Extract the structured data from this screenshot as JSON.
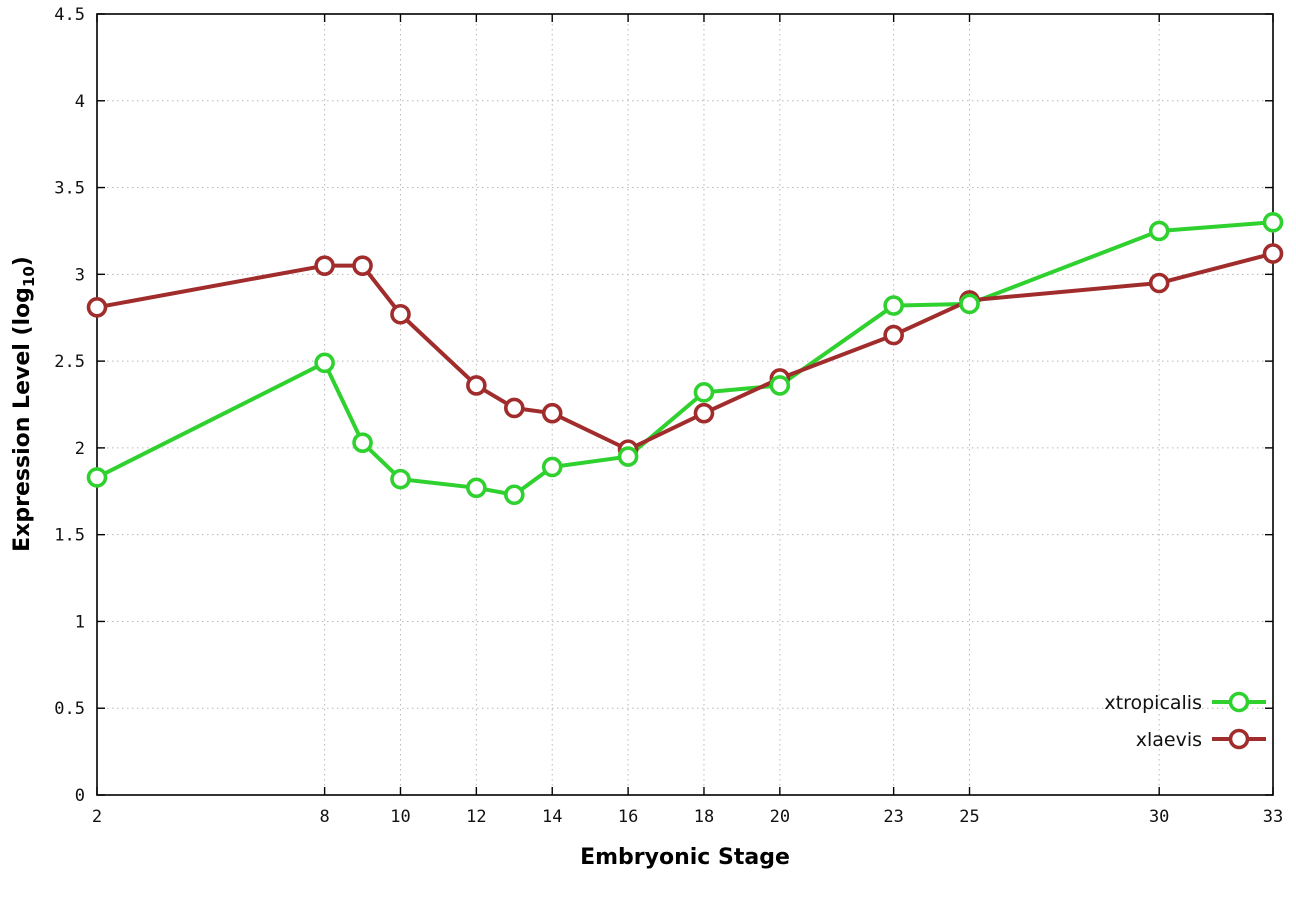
{
  "chart_data": {
    "type": "line",
    "title": "",
    "xlabel": "Embryonic Stage",
    "ylabel": "Expression Level (log10)",
    "ylabel_parts": {
      "main": "Expression Level (log",
      "sub": "10",
      "end": ")"
    },
    "x": [
      2,
      8,
      9,
      10,
      12,
      13,
      14,
      16,
      18,
      20,
      23,
      25,
      30,
      33
    ],
    "xlim": [
      2,
      33
    ],
    "ylim": [
      0,
      4.5
    ],
    "x_ticks": [
      2,
      8,
      10,
      12,
      14,
      16,
      18,
      20,
      23,
      25,
      30,
      33
    ],
    "x_tick_labels": [
      "2",
      "8",
      "10",
      "12",
      "14",
      "16",
      "18",
      "20",
      "23",
      "25",
      "30",
      "33"
    ],
    "y_ticks": [
      0,
      0.5,
      1,
      1.5,
      2,
      2.5,
      3,
      3.5,
      4,
      4.5
    ],
    "y_tick_labels": [
      "0",
      "0.5",
      "1",
      "1.5",
      "2",
      "2.5",
      "3",
      "3.5",
      "4",
      "4.5"
    ],
    "grid": true,
    "legend_position": "bottom-right",
    "series": [
      {
        "name": "xtropicalis",
        "color": "#2fd12f",
        "values": [
          1.83,
          2.49,
          2.03,
          1.82,
          1.77,
          1.73,
          1.89,
          1.95,
          2.32,
          2.36,
          2.82,
          2.83,
          3.25,
          3.3
        ]
      },
      {
        "name": "xlaevis",
        "color": "#a02c2c",
        "values": [
          2.81,
          3.05,
          3.05,
          2.77,
          2.36,
          2.23,
          2.2,
          1.99,
          2.2,
          2.4,
          2.65,
          2.85,
          2.95,
          3.12
        ]
      }
    ],
    "marker": "open-circle",
    "background": "#ffffff"
  }
}
